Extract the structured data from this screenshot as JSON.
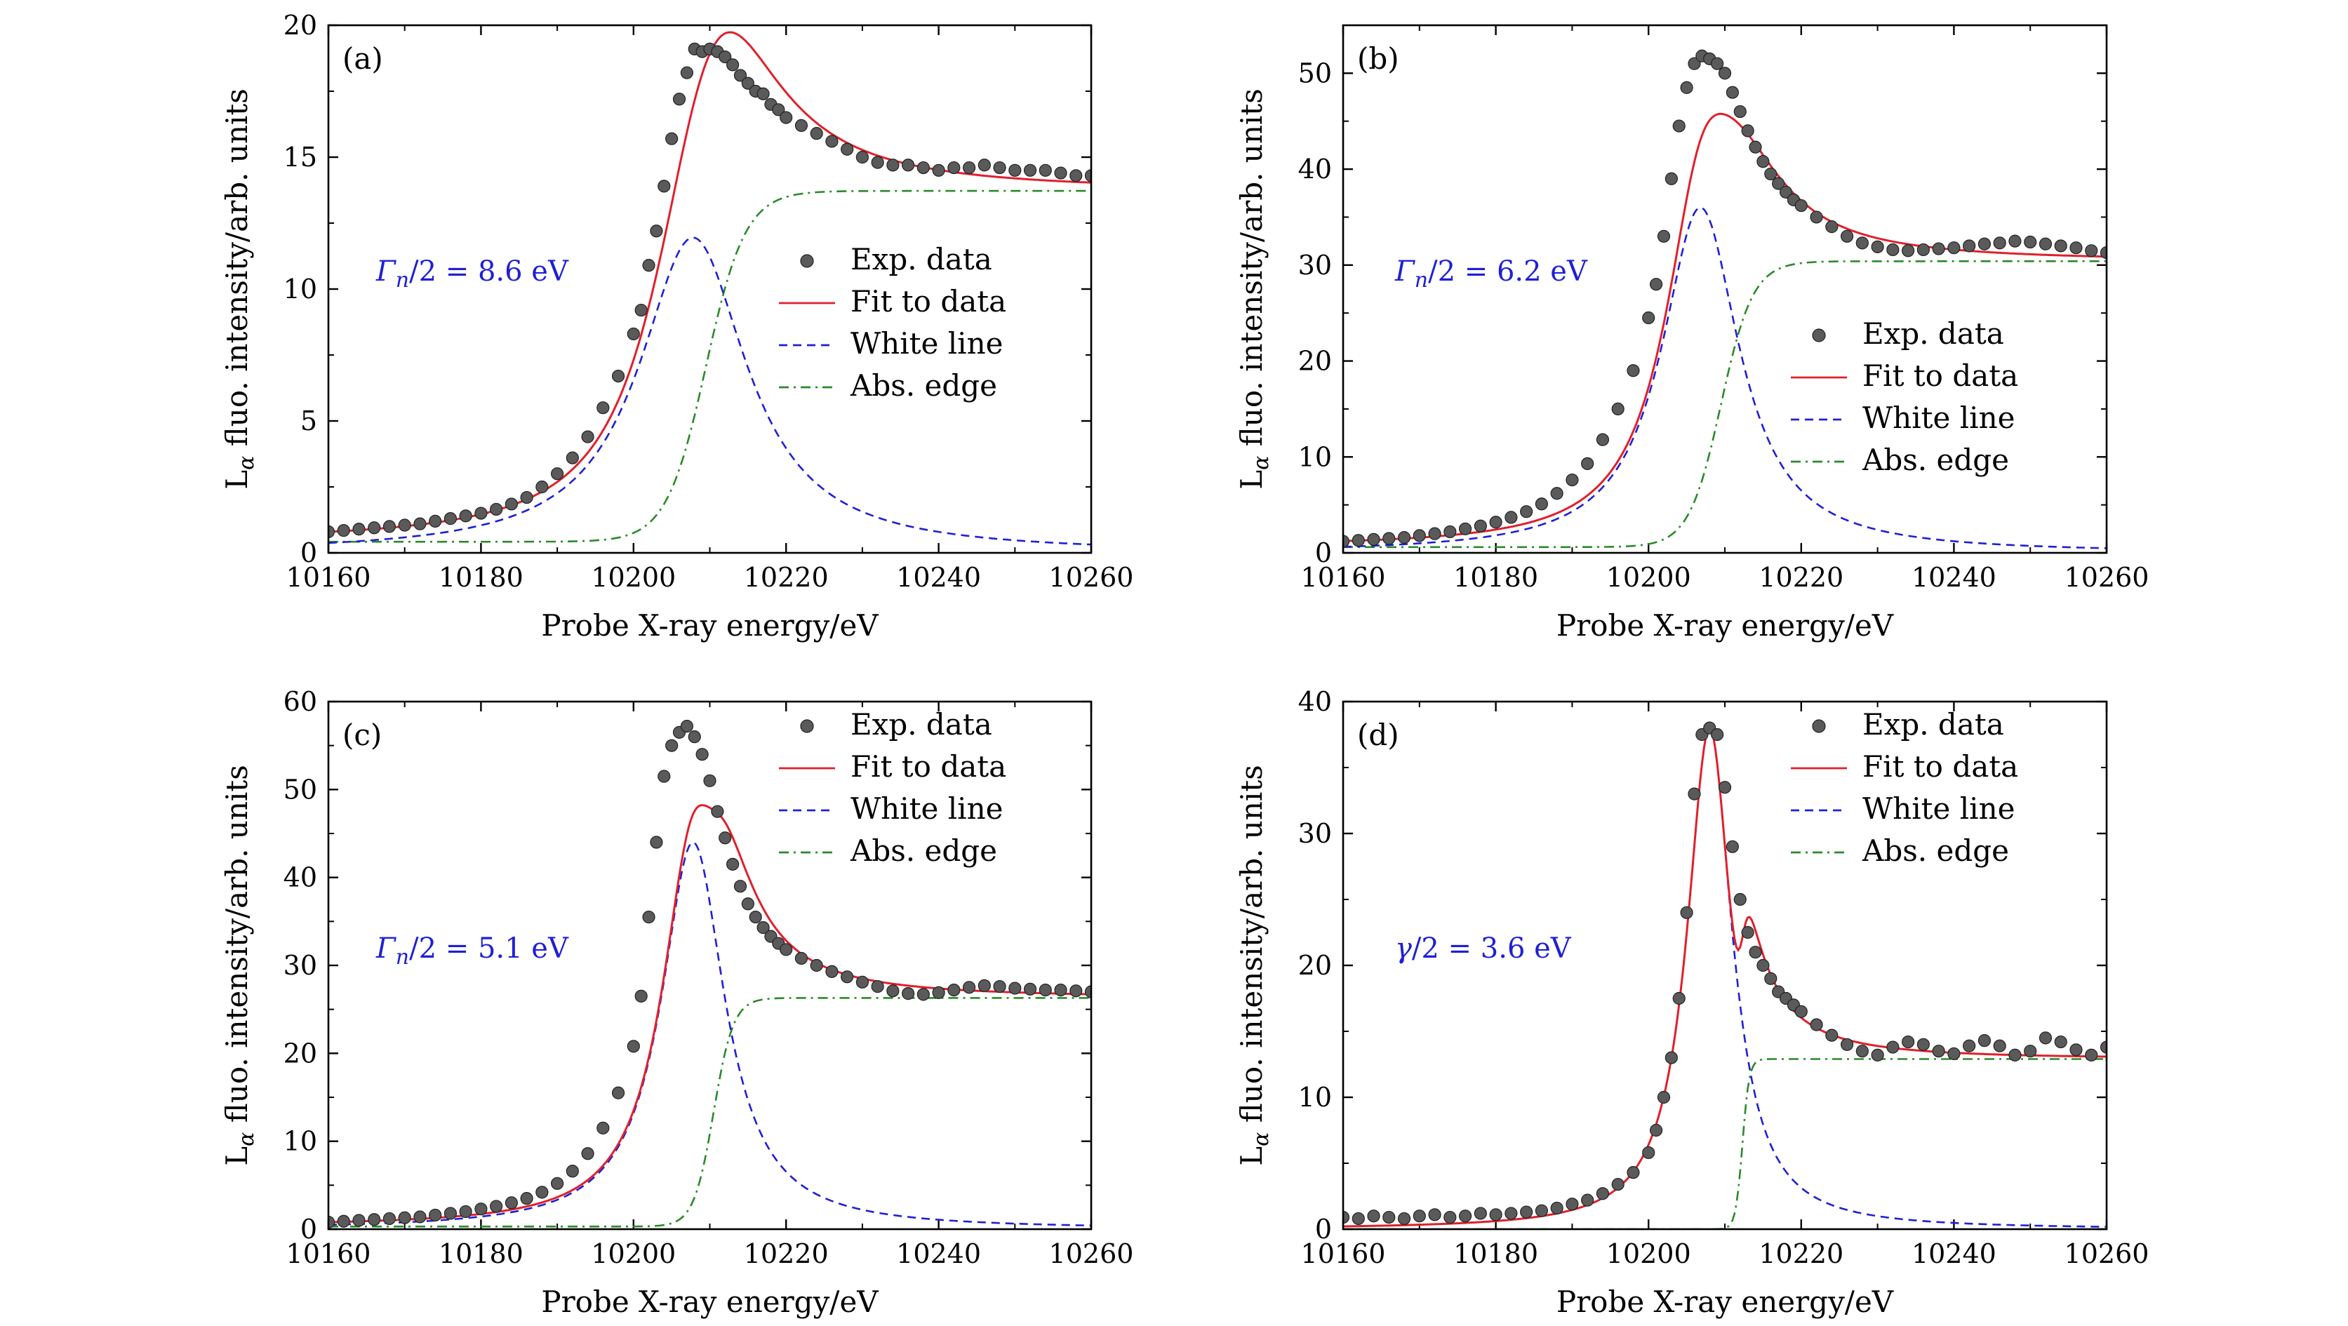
{
  "chart_data": [
    {
      "type": "line",
      "panel_label": "(a)",
      "xlabel": "Probe X-ray energy/eV",
      "ylabel": "Lα fluo. intensity/arb. units",
      "ylabel_base": "L",
      "ylabel_sub": "α",
      "ylabel_rest": " fluo. intensity/arb. units",
      "xlim": [
        10160,
        10260
      ],
      "ylim": [
        0,
        20
      ],
      "xticks": [
        10160,
        10180,
        10200,
        10220,
        10240,
        10260
      ],
      "yticks": [
        0,
        5,
        10,
        15,
        20
      ],
      "legend_position": "center-right",
      "annotation": {
        "symbol": "Γ",
        "sub": "n",
        "rest": "/2 = 8.6 eV"
      },
      "model": {
        "A": 0.42,
        "B": 13.3,
        "E0": 10209.5,
        "edge_width": 5.2,
        "edge_shape": "tanh",
        "W": 11.95,
        "Ew": 10207.8,
        "gamma": 8.6,
        "tail": 1.0
      },
      "series": [
        {
          "name": "Exp. data",
          "kind": "scatter",
          "color": "#555555",
          "x": [
            10160,
            10162,
            10164,
            10166,
            10168,
            10170,
            10172,
            10174,
            10176,
            10178,
            10180,
            10182,
            10184,
            10186,
            10188,
            10190,
            10192,
            10194,
            10196,
            10198,
            10200,
            10201,
            10202,
            10203,
            10204,
            10205,
            10206,
            10207,
            10208,
            10209,
            10210,
            10211,
            10212,
            10213,
            10214,
            10215,
            10216,
            10217,
            10218,
            10219,
            10220,
            10222,
            10224,
            10226,
            10228,
            10230,
            10232,
            10234,
            10236,
            10238,
            10240,
            10242,
            10244,
            10246,
            10248,
            10250,
            10252,
            10254,
            10256,
            10258,
            10260
          ],
          "y": [
            0.8,
            0.85,
            0.9,
            0.95,
            1.0,
            1.05,
            1.1,
            1.2,
            1.3,
            1.4,
            1.5,
            1.65,
            1.85,
            2.1,
            2.5,
            3.0,
            3.6,
            4.4,
            5.5,
            6.7,
            8.3,
            9.2,
            10.9,
            12.2,
            13.9,
            15.7,
            17.2,
            18.2,
            19.1,
            19.0,
            19.1,
            19.0,
            18.8,
            18.5,
            18.1,
            17.8,
            17.5,
            17.4,
            17.0,
            16.8,
            16.5,
            16.2,
            15.9,
            15.6,
            15.3,
            15.0,
            14.8,
            14.7,
            14.7,
            14.6,
            14.5,
            14.6,
            14.6,
            14.7,
            14.6,
            14.5,
            14.5,
            14.5,
            14.4,
            14.3,
            14.3
          ]
        },
        {
          "name": "Fit to data",
          "kind": "line",
          "color": "#e0202b"
        },
        {
          "name": "White line",
          "kind": "dashed",
          "color": "#1f1fd6"
        },
        {
          "name": "Abs. edge",
          "kind": "dashdot",
          "color": "#2a8a2a"
        }
      ]
    },
    {
      "type": "line",
      "panel_label": "(b)",
      "xlabel": "Probe X-ray energy/eV",
      "ylabel": "Lα fluo. intensity/arb. units",
      "ylabel_base": "L",
      "ylabel_sub": "α",
      "ylabel_rest": " fluo. intensity/arb. units",
      "xlim": [
        10160,
        10260
      ],
      "ylim": [
        0,
        55
      ],
      "xticks": [
        10160,
        10180,
        10200,
        10220,
        10240,
        10260
      ],
      "yticks": [
        0,
        10,
        20,
        30,
        40,
        50
      ],
      "legend_position": "center-right",
      "annotation": {
        "symbol": "Γ",
        "sub": "n",
        "rest": "/2 = 6.2 eV"
      },
      "model": {
        "A": 0.6,
        "B": 29.8,
        "E0": 10209.5,
        "edge_width": 4.2,
        "edge_shape": "tanh",
        "W": 36.0,
        "Ew": 10206.8,
        "gamma": 6.2,
        "tail": 1.05
      },
      "series": [
        {
          "name": "Exp. data",
          "kind": "scatter",
          "color": "#555555",
          "x": [
            10160,
            10162,
            10164,
            10166,
            10168,
            10170,
            10172,
            10174,
            10176,
            10178,
            10180,
            10182,
            10184,
            10186,
            10188,
            10190,
            10192,
            10194,
            10196,
            10198,
            10200,
            10201,
            10202,
            10203,
            10204,
            10205,
            10206,
            10207,
            10208,
            10209,
            10210,
            10211,
            10212,
            10213,
            10214,
            10215,
            10216,
            10217,
            10218,
            10219,
            10220,
            10222,
            10224,
            10226,
            10228,
            10230,
            10232,
            10234,
            10236,
            10238,
            10240,
            10242,
            10244,
            10246,
            10248,
            10250,
            10252,
            10254,
            10256,
            10258,
            10260
          ],
          "y": [
            1.2,
            1.3,
            1.4,
            1.5,
            1.6,
            1.8,
            2.0,
            2.2,
            2.5,
            2.8,
            3.2,
            3.7,
            4.3,
            5.1,
            6.2,
            7.6,
            9.3,
            11.8,
            15.0,
            19.0,
            24.5,
            28.0,
            33.0,
            39.0,
            44.5,
            48.5,
            51.0,
            51.8,
            51.5,
            51.0,
            50.0,
            48.0,
            46.0,
            44.0,
            42.3,
            40.8,
            39.5,
            38.5,
            37.6,
            36.8,
            36.2,
            35.0,
            34.0,
            33.0,
            32.3,
            31.9,
            31.6,
            31.5,
            31.6,
            31.7,
            31.8,
            32.0,
            32.2,
            32.3,
            32.5,
            32.4,
            32.2,
            32.0,
            31.8,
            31.5,
            31.3
          ]
        },
        {
          "name": "Fit to data",
          "kind": "line",
          "color": "#e0202b"
        },
        {
          "name": "White line",
          "kind": "dashed",
          "color": "#1f1fd6"
        },
        {
          "name": "Abs. edge",
          "kind": "dashdot",
          "color": "#2a8a2a"
        }
      ]
    },
    {
      "type": "line",
      "panel_label": "(c)",
      "xlabel": "Probe X-ray energy/eV",
      "ylabel": "Lα fluo. intensity/arb. units",
      "ylabel_base": "L",
      "ylabel_sub": "α",
      "ylabel_rest": " fluo. intensity/arb. units",
      "xlim": [
        10160,
        10260
      ],
      "ylim": [
        0,
        60
      ],
      "xticks": [
        10160,
        10180,
        10200,
        10220,
        10240,
        10260
      ],
      "yticks": [
        0,
        10,
        20,
        30,
        40,
        50,
        60
      ],
      "legend_position": "top-right",
      "annotation": {
        "symbol": "Γ",
        "sub": "n",
        "rest": "/2 = 5.1 eV"
      },
      "model": {
        "A": 0.3,
        "B": 26.0,
        "E0": 10210.5,
        "edge_width": 2.6,
        "edge_shape": "tanh",
        "W": 44.0,
        "Ew": 10207.8,
        "gamma": 5.1,
        "tail": 0.9
      },
      "series": [
        {
          "name": "Exp. data",
          "kind": "scatter",
          "color": "#555555",
          "x": [
            10160,
            10162,
            10164,
            10166,
            10168,
            10170,
            10172,
            10174,
            10176,
            10178,
            10180,
            10182,
            10184,
            10186,
            10188,
            10190,
            10192,
            10194,
            10196,
            10198,
            10200,
            10201,
            10202,
            10203,
            10204,
            10205,
            10206,
            10207,
            10208,
            10209,
            10210,
            10211,
            10212,
            10213,
            10214,
            10215,
            10216,
            10217,
            10218,
            10219,
            10220,
            10222,
            10224,
            10226,
            10228,
            10230,
            10232,
            10234,
            10236,
            10238,
            10240,
            10242,
            10244,
            10246,
            10248,
            10250,
            10252,
            10254,
            10256,
            10258,
            10260
          ],
          "y": [
            0.8,
            0.9,
            1.0,
            1.1,
            1.2,
            1.3,
            1.4,
            1.6,
            1.8,
            2.0,
            2.3,
            2.6,
            3.0,
            3.5,
            4.2,
            5.2,
            6.6,
            8.6,
            11.5,
            15.5,
            20.8,
            26.5,
            35.5,
            44.0,
            51.5,
            55.0,
            56.5,
            57.2,
            56.0,
            54.0,
            51.0,
            47.5,
            44.5,
            41.5,
            39.0,
            37.0,
            35.5,
            34.3,
            33.3,
            32.5,
            31.8,
            30.8,
            30.0,
            29.3,
            28.7,
            28.1,
            27.6,
            27.1,
            26.8,
            26.7,
            26.9,
            27.2,
            27.5,
            27.7,
            27.6,
            27.4,
            27.3,
            27.2,
            27.2,
            27.1,
            27.0
          ]
        },
        {
          "name": "Fit to data",
          "kind": "line",
          "color": "#e0202b"
        },
        {
          "name": "White line",
          "kind": "dashed",
          "color": "#1f1fd6"
        },
        {
          "name": "Abs. edge",
          "kind": "dashdot",
          "color": "#2a8a2a"
        }
      ]
    },
    {
      "type": "line",
      "panel_label": "(d)",
      "xlabel": "Probe X-ray energy/eV",
      "ylabel": "Lα fluo. intensity/arb. units",
      "ylabel_base": "L",
      "ylabel_sub": "α",
      "ylabel_rest": " fluo. intensity/arb. units",
      "xlim": [
        10160,
        10260
      ],
      "ylim": [
        0,
        40
      ],
      "xticks": [
        10160,
        10180,
        10200,
        10220,
        10240,
        10260
      ],
      "yticks": [
        0,
        10,
        20,
        30,
        40
      ],
      "legend_position": "top-right",
      "annotation": {
        "symbol": "γ",
        "sub": "",
        "rest": "/2 = 3.6 eV"
      },
      "model": {
        "A": 0.0,
        "B": 12.9,
        "E0": 10212.3,
        "edge_width": 0.9,
        "edge_shape": "tanh",
        "W": 38.0,
        "Ew": 10208.0,
        "gamma": 3.6,
        "tail": 2.6
      },
      "series": [
        {
          "name": "Exp. data",
          "kind": "scatter",
          "color": "#555555",
          "x": [
            10160,
            10162,
            10164,
            10166,
            10168,
            10170,
            10172,
            10174,
            10176,
            10178,
            10180,
            10182,
            10184,
            10186,
            10188,
            10190,
            10192,
            10194,
            10196,
            10198,
            10200,
            10201,
            10202,
            10203,
            10204,
            10205,
            10206,
            10207,
            10208,
            10209,
            10210,
            10211,
            10212,
            10213,
            10214,
            10215,
            10216,
            10217,
            10218,
            10219,
            10220,
            10222,
            10224,
            10226,
            10228,
            10230,
            10232,
            10234,
            10236,
            10238,
            10240,
            10242,
            10244,
            10246,
            10248,
            10250,
            10252,
            10254,
            10256,
            10258,
            10260
          ],
          "y": [
            0.9,
            0.8,
            1.0,
            0.9,
            0.8,
            1.0,
            1.1,
            0.9,
            1.0,
            1.2,
            1.1,
            1.2,
            1.3,
            1.4,
            1.6,
            1.9,
            2.2,
            2.7,
            3.4,
            4.3,
            5.8,
            7.5,
            10.0,
            13.0,
            17.5,
            24.0,
            33.0,
            37.5,
            38.0,
            37.5,
            33.5,
            29.0,
            25.0,
            22.5,
            21.0,
            20.0,
            19.0,
            18.0,
            17.5,
            17.0,
            16.5,
            15.5,
            14.7,
            14.0,
            13.5,
            13.2,
            13.8,
            14.2,
            14.0,
            13.5,
            13.3,
            13.9,
            14.3,
            13.9,
            13.2,
            13.5,
            14.5,
            14.2,
            13.6,
            13.2,
            13.8
          ]
        },
        {
          "name": "Fit to data",
          "kind": "line",
          "color": "#e0202b"
        },
        {
          "name": "White line",
          "kind": "dashed",
          "color": "#1f1fd6"
        },
        {
          "name": "Abs. edge",
          "kind": "dashdot",
          "color": "#2a8a2a"
        }
      ]
    }
  ]
}
